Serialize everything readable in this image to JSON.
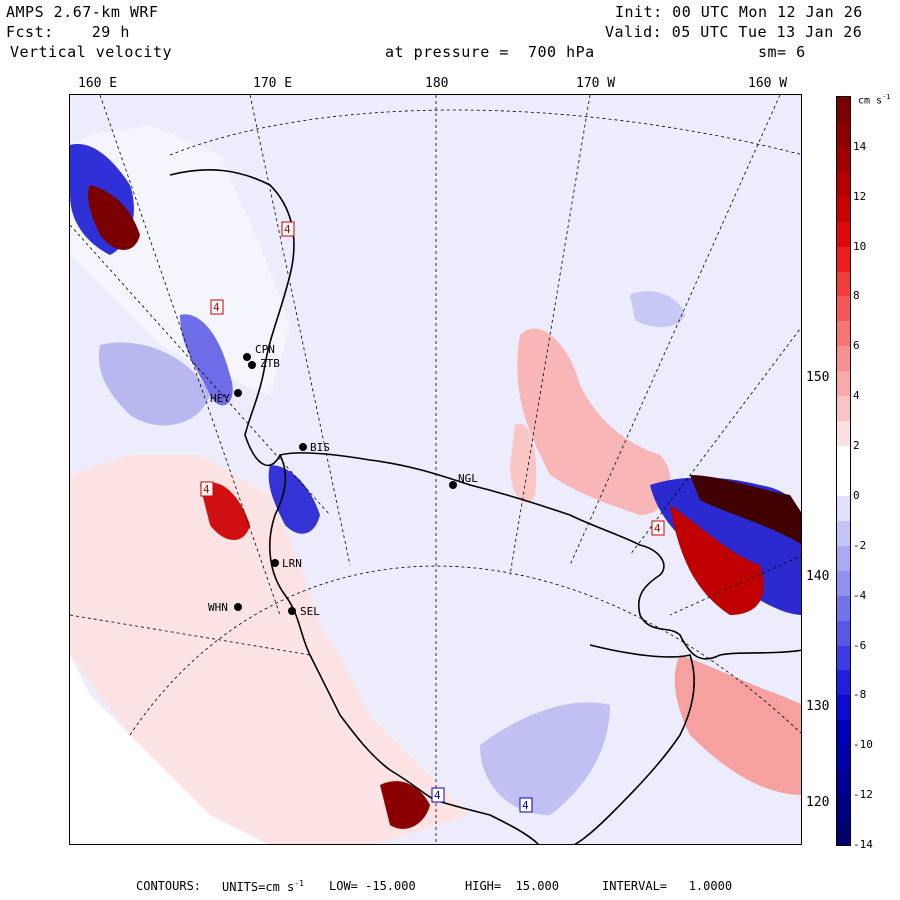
{
  "header": {
    "model": "AMPS 2.67-km WRF",
    "init": "Init: 00 UTC Mon 12 Jan 26",
    "fcst_label": "Fcst:",
    "fcst_value": "29 h",
    "valid": "Valid: 05 UTC Tue 13 Jan 26",
    "field": "Vertical velocity",
    "pressure": "at pressure =  700 hPa",
    "smoothing": "sm= 6"
  },
  "longitude_labels": [
    "160 E",
    "170 E",
    "180",
    "170 W",
    "160 W"
  ],
  "latitude_labels": [
    "150 W",
    "140 W",
    "130 W",
    "120 W"
  ],
  "stations": [
    "CPN",
    "ZTB",
    "HEY",
    "BIS",
    "NGL",
    "LRN",
    "SEL",
    "WHN"
  ],
  "box_markers": [
    "4",
    "4",
    "4",
    "4",
    "4",
    "4"
  ],
  "colorbar": {
    "unit": "cm s",
    "unit_sup": "-1",
    "tick_labels": [
      "14",
      "12",
      "10",
      "8",
      "6",
      "4",
      "2",
      "0",
      "-2",
      "-4",
      "-6",
      "-8",
      "-10",
      "-12",
      "-14"
    ],
    "colors": [
      "#7a0000",
      "#8c0000",
      "#a00000",
      "#b40000",
      "#c80000",
      "#dc0a0a",
      "#ea2020",
      "#f23c3c",
      "#f45858",
      "#f57474",
      "#f79090",
      "#f8aaaa",
      "#fbc4c4",
      "#fde0e0",
      "#ffffff",
      "#ffffff",
      "#e0e0fb",
      "#c4c4f6",
      "#aaaaf2",
      "#9090ee",
      "#7474ea",
      "#5858e6",
      "#3c3ce2",
      "#2020dc",
      "#0a0ad0",
      "#0000bb",
      "#0000a8",
      "#000094",
      "#000080",
      "#00006e"
    ]
  },
  "footer": {
    "contours_label": "CONTOURS:",
    "units_label": "UNITS=cm s",
    "units_sup": "-1",
    "low": "LOW= -15.000",
    "high": "HIGH=  15.000",
    "interval": "INTERVAL=   1.0000"
  }
}
